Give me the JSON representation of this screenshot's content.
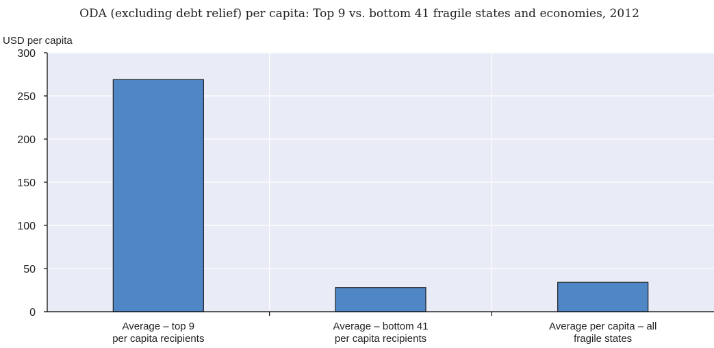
{
  "chart_data": {
    "type": "bar",
    "title": "ODA (excluding debt relief) per capita: Top 9 vs. bottom 41 fragile states and economies, 2012",
    "ylabel": "USD per capita",
    "xlabel": "",
    "ylim": [
      0,
      300
    ],
    "yticks": [
      0,
      50,
      100,
      150,
      200,
      250,
      300
    ],
    "grid": true,
    "legend": "none",
    "categories": [
      [
        "Average – top 9",
        "per capita recipients"
      ],
      [
        "Average – bottom 41",
        "per capita recipients"
      ],
      [
        "Average per capita – all",
        "fragile states"
      ]
    ],
    "values": [
      269,
      28,
      34
    ]
  },
  "colors": {
    "plot_background": "#e9ecf6",
    "bar_fill": "#4f86c6",
    "bar_stroke": "#1f1f1f",
    "grid": "#ffffff"
  }
}
